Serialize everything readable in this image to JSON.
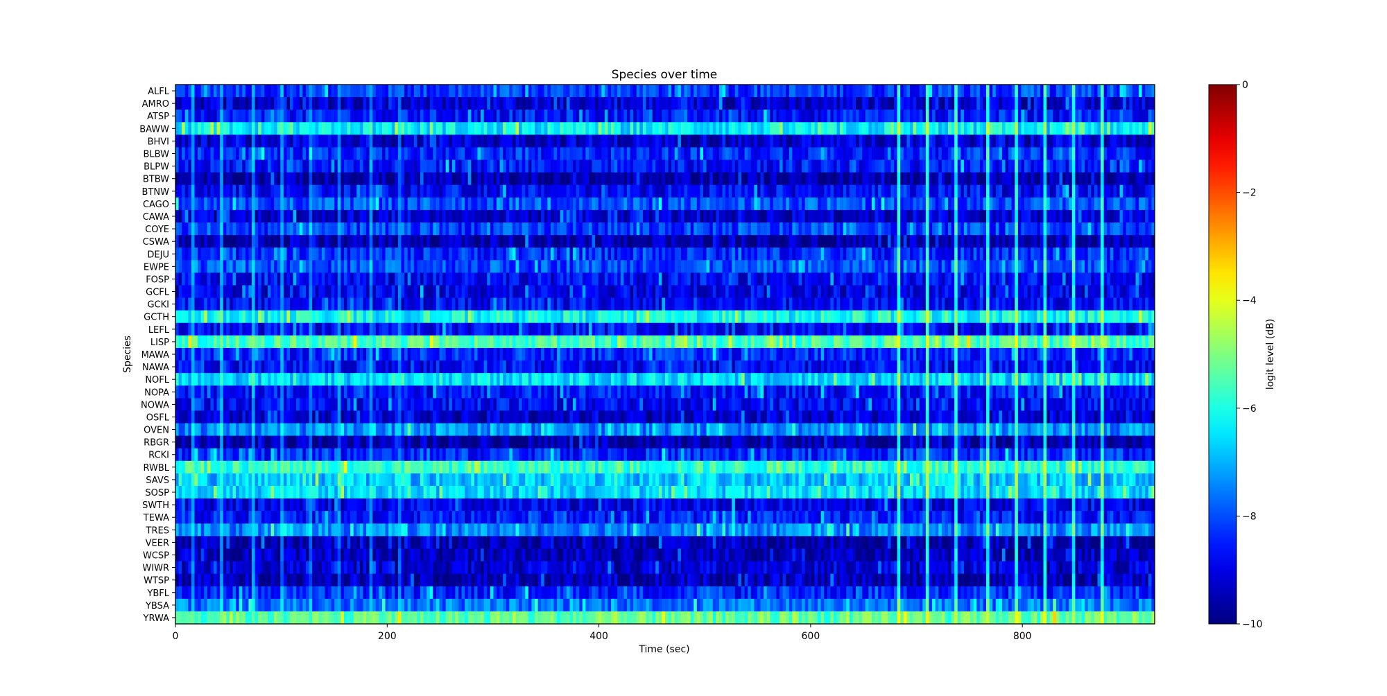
{
  "chart_data": {
    "type": "heatmap",
    "title": "Species over time",
    "xlabel": "Time (sec)",
    "ylabel": "Species",
    "colorbar_label": "logit level (dB)",
    "colormap": "jet",
    "x_range": [
      0,
      925
    ],
    "x_ticks": [
      0,
      200,
      400,
      600,
      800
    ],
    "x_tick_labels": [
      "0",
      "200",
      "400",
      "600",
      "800"
    ],
    "value_range": [
      -10,
      0
    ],
    "colorbar_ticks": [
      0,
      -2,
      -4,
      -6,
      -8,
      -10
    ],
    "colorbar_tick_labels": [
      "0",
      "−2",
      "−4",
      "−6",
      "−8",
      "−10"
    ],
    "time_step_sec": 3,
    "species": [
      "ALFL",
      "AMRO",
      "ATSP",
      "BAWW",
      "BHVI",
      "BLBW",
      "BLPW",
      "BTBW",
      "BTNW",
      "CAGO",
      "CAWA",
      "COYE",
      "CSWA",
      "DEJU",
      "EWPE",
      "FOSP",
      "GCFL",
      "GCKI",
      "GCTH",
      "LEFL",
      "LISP",
      "MAWA",
      "NAWA",
      "NOFL",
      "NOPA",
      "NOWA",
      "OSFL",
      "OVEN",
      "RBGR",
      "RCKI",
      "RWBL",
      "SAVS",
      "SOSP",
      "SWTH",
      "TEWA",
      "TRES",
      "VEER",
      "WCSP",
      "WIWR",
      "WTSP",
      "YBFL",
      "YBSA",
      "YRWA"
    ],
    "row_base_levels": [
      -8.2,
      -9.2,
      -8.6,
      -6.4,
      -9.2,
      -8.4,
      -8.6,
      -9.6,
      -8.8,
      -8.0,
      -9.2,
      -8.2,
      -9.6,
      -8.4,
      -8.0,
      -8.8,
      -9.0,
      -8.8,
      -6.2,
      -8.8,
      -5.6,
      -8.4,
      -8.8,
      -6.6,
      -8.6,
      -8.8,
      -9.2,
      -7.4,
      -9.6,
      -8.4,
      -5.8,
      -6.8,
      -6.6,
      -9.0,
      -8.6,
      -7.4,
      -9.6,
      -9.4,
      -9.2,
      -9.4,
      -8.4,
      -7.6,
      -5.4
    ],
    "event_columns_sec": [
      15,
      42,
      72,
      99,
      126,
      153,
      183,
      210,
      681,
      708,
      735,
      765,
      792,
      819,
      846,
      873
    ],
    "event_peak_levels": [
      -6.2,
      -6.0,
      -6.0,
      -6.2,
      -6.4,
      -6.4,
      -6.2,
      -6.6,
      -4.8,
      -4.8,
      -4.9,
      -4.9,
      -4.9,
      -5.0,
      -5.0,
      -5.0
    ]
  }
}
